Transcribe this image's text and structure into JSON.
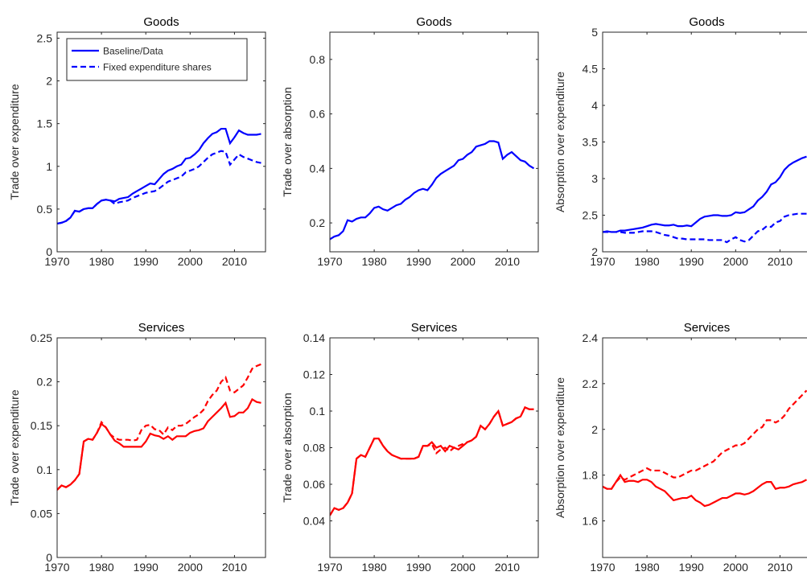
{
  "chart_data": [
    {
      "type": "line",
      "title": "Goods",
      "y_label": "Trade over expenditure",
      "legend": "upper left",
      "x": [
        1970,
        1971,
        1972,
        1973,
        1974,
        1975,
        1976,
        1977,
        1978,
        1979,
        1980,
        1981,
        1982,
        1983,
        1984,
        1985,
        1986,
        1987,
        1988,
        1989,
        1990,
        1991,
        1992,
        1993,
        1994,
        1995,
        1996,
        1997,
        1998,
        1999,
        2000,
        2001,
        2002,
        2003,
        2004,
        2005,
        2006,
        2007,
        2008,
        2009,
        2010,
        2011,
        2012,
        2013,
        2014,
        2015,
        2016
      ],
      "xlim": [
        1970,
        2017
      ],
      "xticks": [
        1970,
        1980,
        1990,
        2000,
        2010
      ],
      "ylim": [
        0,
        2.57
      ],
      "yticks": [
        0,
        0.5,
        1,
        1.5,
        2,
        2.5
      ],
      "series": [
        {
          "name": "Baseline/Data",
          "color": "#0000ff",
          "style": "solid",
          "values": [
            0.33,
            0.34,
            0.36,
            0.4,
            0.48,
            0.47,
            0.5,
            0.51,
            0.51,
            0.56,
            0.6,
            0.61,
            0.6,
            0.59,
            0.62,
            0.63,
            0.64,
            0.68,
            0.71,
            0.74,
            0.77,
            0.8,
            0.79,
            0.85,
            0.91,
            0.95,
            0.97,
            1.0,
            1.02,
            1.09,
            1.1,
            1.14,
            1.19,
            1.27,
            1.33,
            1.38,
            1.4,
            1.44,
            1.44,
            1.27,
            1.34,
            1.42,
            1.39,
            1.37,
            1.37,
            1.37,
            1.38
          ]
        },
        {
          "name": "Fixed expenditure shares",
          "color": "#0000ff",
          "style": "dashed",
          "values": [
            0.33,
            0.34,
            0.36,
            0.4,
            0.48,
            0.47,
            0.5,
            0.51,
            0.51,
            0.56,
            0.6,
            0.61,
            0.6,
            0.56,
            0.58,
            0.59,
            0.6,
            0.63,
            0.65,
            0.67,
            0.69,
            0.7,
            0.71,
            0.74,
            0.78,
            0.82,
            0.84,
            0.86,
            0.88,
            0.93,
            0.95,
            0.97,
            1.0,
            1.05,
            1.1,
            1.14,
            1.16,
            1.18,
            1.17,
            1.02,
            1.08,
            1.14,
            1.11,
            1.09,
            1.07,
            1.05,
            1.04
          ]
        }
      ]
    },
    {
      "type": "line",
      "title": "Goods",
      "y_label": "Trade over absorption",
      "x": [
        1970,
        1971,
        1972,
        1973,
        1974,
        1975,
        1976,
        1977,
        1978,
        1979,
        1980,
        1981,
        1982,
        1983,
        1984,
        1985,
        1986,
        1987,
        1988,
        1989,
        1990,
        1991,
        1992,
        1993,
        1994,
        1995,
        1996,
        1997,
        1998,
        1999,
        2000,
        2001,
        2002,
        2003,
        2004,
        2005,
        2006,
        2007,
        2008,
        2009,
        2010,
        2011,
        2012,
        2013,
        2014,
        2015,
        2016
      ],
      "xlim": [
        1970,
        2017
      ],
      "xticks": [
        1970,
        1980,
        1990,
        2000,
        2010
      ],
      "ylim": [
        0.094,
        0.9
      ],
      "yticks": [
        0.2,
        0.4,
        0.6,
        0.8
      ],
      "series": [
        {
          "color": "#0000ff",
          "style": "solid",
          "values": [
            0.14,
            0.15,
            0.155,
            0.17,
            0.21,
            0.205,
            0.215,
            0.22,
            0.22,
            0.235,
            0.255,
            0.26,
            0.25,
            0.245,
            0.255,
            0.265,
            0.27,
            0.285,
            0.295,
            0.31,
            0.32,
            0.325,
            0.32,
            0.34,
            0.365,
            0.38,
            0.39,
            0.4,
            0.41,
            0.43,
            0.435,
            0.45,
            0.46,
            0.48,
            0.485,
            0.49,
            0.5,
            0.5,
            0.495,
            0.435,
            0.45,
            0.46,
            0.445,
            0.43,
            0.425,
            0.41,
            0.4
          ]
        }
      ]
    },
    {
      "type": "line",
      "title": "Goods",
      "y_label": "Absorption over expenditure",
      "x": [
        1970,
        1971,
        1972,
        1973,
        1974,
        1975,
        1976,
        1977,
        1978,
        1979,
        1980,
        1981,
        1982,
        1983,
        1984,
        1985,
        1986,
        1987,
        1988,
        1989,
        1990,
        1991,
        1992,
        1993,
        1994,
        1995,
        1996,
        1997,
        1998,
        1999,
        2000,
        2001,
        2002,
        2003,
        2004,
        2005,
        2006,
        2007,
        2008,
        2009,
        2010,
        2011,
        2012,
        2013,
        2014,
        2015,
        2016
      ],
      "xlim": [
        1970,
        2017
      ],
      "xticks": [
        1970,
        1980,
        1990,
        2000,
        2010
      ],
      "ylim": [
        2,
        5
      ],
      "yticks": [
        2,
        2.5,
        3,
        3.5,
        4,
        4.5,
        5
      ],
      "series": [
        {
          "color": "#0000ff",
          "style": "solid",
          "values": [
            2.27,
            2.28,
            2.27,
            2.27,
            2.29,
            2.29,
            2.3,
            2.31,
            2.32,
            2.33,
            2.35,
            2.37,
            2.38,
            2.37,
            2.36,
            2.36,
            2.37,
            2.35,
            2.35,
            2.36,
            2.35,
            2.4,
            2.45,
            2.48,
            2.49,
            2.5,
            2.5,
            2.49,
            2.49,
            2.5,
            2.54,
            2.53,
            2.54,
            2.58,
            2.62,
            2.7,
            2.75,
            2.82,
            2.92,
            2.95,
            3.02,
            3.12,
            3.18,
            3.22,
            3.25,
            3.28,
            3.3
          ]
        },
        {
          "color": "#0000ff",
          "style": "dashed",
          "values": [
            2.27,
            2.27,
            2.27,
            2.27,
            2.27,
            2.26,
            2.26,
            2.26,
            2.27,
            2.28,
            2.28,
            2.28,
            2.27,
            2.25,
            2.23,
            2.22,
            2.2,
            2.18,
            2.18,
            2.17,
            2.17,
            2.17,
            2.17,
            2.17,
            2.16,
            2.16,
            2.16,
            2.16,
            2.13,
            2.17,
            2.2,
            2.16,
            2.14,
            2.16,
            2.22,
            2.28,
            2.3,
            2.35,
            2.34,
            2.4,
            2.42,
            2.48,
            2.5,
            2.51,
            2.52,
            2.52,
            2.52
          ]
        }
      ]
    },
    {
      "type": "line",
      "title": "Services",
      "y_label": "Trade over expenditure",
      "x": [
        1970,
        1971,
        1972,
        1973,
        1974,
        1975,
        1976,
        1977,
        1978,
        1979,
        1980,
        1981,
        1982,
        1983,
        1984,
        1985,
        1986,
        1987,
        1988,
        1989,
        1990,
        1991,
        1992,
        1993,
        1994,
        1995,
        1996,
        1997,
        1998,
        1999,
        2000,
        2001,
        2002,
        2003,
        2004,
        2005,
        2006,
        2007,
        2008,
        2009,
        2010,
        2011,
        2012,
        2013,
        2014,
        2015,
        2016
      ],
      "xlim": [
        1970,
        2017
      ],
      "xticks": [
        1970,
        1980,
        1990,
        2000,
        2010
      ],
      "ylim": [
        0,
        0.25
      ],
      "yticks": [
        0,
        0.05,
        0.1,
        0.15,
        0.2,
        0.25
      ],
      "series": [
        {
          "color": "#ff0000",
          "style": "solid",
          "values": [
            0.077,
            0.082,
            0.08,
            0.083,
            0.088,
            0.095,
            0.132,
            0.135,
            0.134,
            0.142,
            0.152,
            0.148,
            0.14,
            0.133,
            0.13,
            0.126,
            0.126,
            0.126,
            0.126,
            0.126,
            0.132,
            0.141,
            0.139,
            0.138,
            0.135,
            0.138,
            0.134,
            0.138,
            0.138,
            0.138,
            0.142,
            0.144,
            0.145,
            0.147,
            0.155,
            0.16,
            0.165,
            0.17,
            0.176,
            0.16,
            0.161,
            0.165,
            0.165,
            0.17,
            0.18,
            0.177,
            0.176
          ]
        },
        {
          "color": "#ff0000",
          "style": "dashed",
          "values": [
            0.077,
            0.082,
            0.08,
            0.083,
            0.088,
            0.095,
            0.132,
            0.135,
            0.134,
            0.142,
            0.154,
            0.148,
            0.14,
            0.136,
            0.134,
            0.134,
            0.134,
            0.133,
            0.134,
            0.145,
            0.15,
            0.151,
            0.146,
            0.145,
            0.14,
            0.148,
            0.145,
            0.15,
            0.15,
            0.152,
            0.156,
            0.16,
            0.163,
            0.168,
            0.178,
            0.185,
            0.19,
            0.2,
            0.205,
            0.19,
            0.188,
            0.192,
            0.196,
            0.205,
            0.215,
            0.218,
            0.22
          ]
        }
      ]
    },
    {
      "type": "line",
      "title": "Services",
      "y_label": "Trade over absorption",
      "x": [
        1970,
        1971,
        1972,
        1973,
        1974,
        1975,
        1976,
        1977,
        1978,
        1979,
        1980,
        1981,
        1982,
        1983,
        1984,
        1985,
        1986,
        1987,
        1988,
        1989,
        1990,
        1991,
        1992,
        1993,
        1994,
        1995,
        1996,
        1997,
        1998,
        1999,
        2000,
        2001,
        2002,
        2003,
        2004,
        2005,
        2006,
        2007,
        2008,
        2009,
        2010,
        2011,
        2012,
        2013,
        2014,
        2015,
        2016
      ],
      "xlim": [
        1970,
        2017
      ],
      "xticks": [
        1970,
        1980,
        1990,
        2000,
        2010
      ],
      "ylim": [
        0.02,
        0.14
      ],
      "yticks": [
        0.04,
        0.06,
        0.08,
        0.1,
        0.12,
        0.14
      ],
      "series": [
        {
          "color": "#ff0000",
          "style": "solid",
          "values": [
            0.043,
            0.047,
            0.046,
            0.047,
            0.05,
            0.055,
            0.074,
            0.076,
            0.075,
            0.08,
            0.085,
            0.085,
            0.081,
            0.078,
            0.076,
            0.075,
            0.074,
            0.074,
            0.074,
            0.074,
            0.075,
            0.081,
            0.081,
            0.083,
            0.08,
            0.081,
            0.078,
            0.081,
            0.08,
            0.079,
            0.081,
            0.083,
            0.084,
            0.086,
            0.092,
            0.09,
            0.093,
            0.097,
            0.1,
            0.092,
            0.093,
            0.094,
            0.096,
            0.097,
            0.102,
            0.101,
            0.101
          ]
        },
        {
          "color": "#ff0000",
          "style": "dashed",
          "values": [
            0.043,
            0.047,
            0.046,
            0.047,
            0.05,
            0.055,
            0.074,
            0.076,
            0.075,
            0.08,
            0.085,
            0.085,
            0.081,
            0.078,
            0.076,
            0.075,
            0.074,
            0.074,
            0.074,
            0.074,
            0.075,
            0.081,
            0.081,
            0.082,
            0.077,
            0.079,
            0.08,
            0.078,
            0.08,
            0.081,
            0.082,
            0.083,
            0.084,
            0.086,
            0.092,
            0.09,
            0.093,
            0.097,
            0.1,
            0.092,
            0.093,
            0.094,
            0.096,
            0.097,
            0.102,
            0.101,
            0.101
          ]
        }
      ]
    },
    {
      "type": "line",
      "title": "Services",
      "y_label": "Absorption over expenditure",
      "x": [
        1970,
        1971,
        1972,
        1973,
        1974,
        1975,
        1976,
        1977,
        1978,
        1979,
        1980,
        1981,
        1982,
        1983,
        1984,
        1985,
        1986,
        1987,
        1988,
        1989,
        1990,
        1991,
        1992,
        1993,
        1994,
        1995,
        1996,
        1997,
        1998,
        1999,
        2000,
        2001,
        2002,
        2003,
        2004,
        2005,
        2006,
        2007,
        2008,
        2009,
        2010,
        2011,
        2012,
        2013,
        2014,
        2015,
        2016
      ],
      "xlim": [
        1970,
        2017
      ],
      "xticks": [
        1970,
        1980,
        1990,
        2000,
        2010
      ],
      "ylim": [
        1.44,
        2.4
      ],
      "yticks": [
        1.6,
        1.8,
        2,
        2.2,
        2.4
      ],
      "series": [
        {
          "color": "#ff0000",
          "style": "solid",
          "values": [
            1.75,
            1.74,
            1.74,
            1.77,
            1.8,
            1.77,
            1.775,
            1.775,
            1.77,
            1.78,
            1.78,
            1.77,
            1.75,
            1.74,
            1.73,
            1.71,
            1.69,
            1.695,
            1.7,
            1.7,
            1.71,
            1.69,
            1.68,
            1.665,
            1.67,
            1.68,
            1.69,
            1.7,
            1.7,
            1.71,
            1.72,
            1.72,
            1.715,
            1.72,
            1.73,
            1.745,
            1.76,
            1.77,
            1.77,
            1.74,
            1.745,
            1.745,
            1.75,
            1.76,
            1.765,
            1.77,
            1.78
          ]
        },
        {
          "color": "#ff0000",
          "style": "dashed",
          "values": [
            1.75,
            1.74,
            1.74,
            1.77,
            1.79,
            1.78,
            1.79,
            1.8,
            1.81,
            1.82,
            1.83,
            1.82,
            1.82,
            1.82,
            1.81,
            1.8,
            1.79,
            1.79,
            1.8,
            1.81,
            1.82,
            1.82,
            1.83,
            1.84,
            1.85,
            1.86,
            1.88,
            1.9,
            1.91,
            1.92,
            1.93,
            1.93,
            1.94,
            1.96,
            1.98,
            2.0,
            2.01,
            2.04,
            2.04,
            2.03,
            2.04,
            2.06,
            2.09,
            2.11,
            2.13,
            2.15,
            2.17
          ]
        }
      ]
    }
  ]
}
